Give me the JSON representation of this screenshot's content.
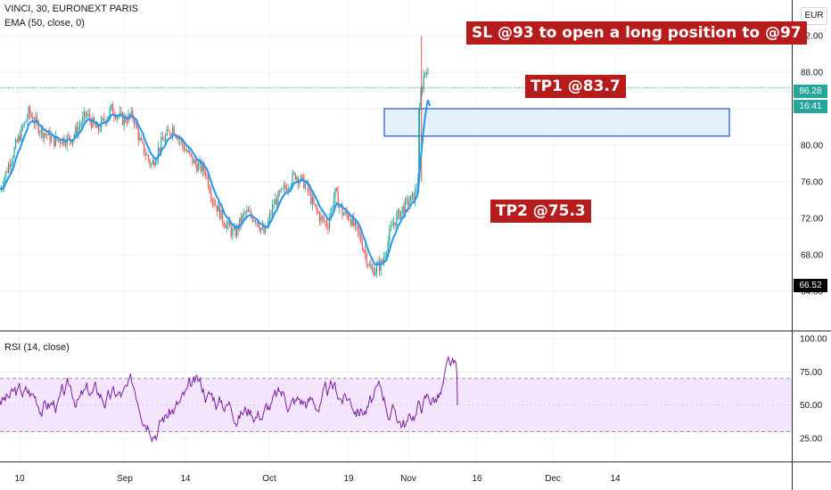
{
  "header": {
    "symbol_line": "VINCI, 30, EURONEXT PARIS",
    "ema_line": "EMA (50, close, 0)",
    "rsi_line": "RSI (14, close)",
    "currency_button": "EUR"
  },
  "annotations": {
    "sl": "SL @93 to open a long position to @97",
    "tp1": "TP1 @83.7",
    "tp2": "TP2 @75.3"
  },
  "price_labels": {
    "last": "86.28",
    "countdown": "16:41",
    "low": "66.52"
  },
  "colors": {
    "up": "#26a69a",
    "down": "#ef5350",
    "ema": "#2196f3",
    "rsi": "#7b1fa2",
    "rsi_band": "#f3e5fb",
    "zone_fill": "#e3f2fd",
    "zone_border": "#4a6fdc",
    "annotation_bg": "#b71c1c",
    "last_tag": "#26a69a",
    "low_tag": "#000000"
  },
  "chart_data": [
    {
      "type": "candlestick",
      "panel": "price",
      "y_ticks": [
        "64.00",
        "68.00",
        "72.00",
        "76.00",
        "80.00",
        "84.00",
        "88.00",
        "92.00"
      ],
      "ylim": [
        62.0,
        94.2
      ],
      "x_ticks": [
        "10",
        "Sep",
        "14",
        "Oct",
        "19",
        "Nov",
        "16",
        "Dec",
        "14"
      ],
      "close_path": [
        [
          0,
          75.2
        ],
        [
          0.03,
          78.5
        ],
        [
          0.08,
          83.6
        ],
        [
          0.11,
          81.8
        ],
        [
          0.15,
          80.5
        ],
        [
          0.2,
          80.8
        ],
        [
          0.24,
          83.4
        ],
        [
          0.27,
          81.6
        ],
        [
          0.31,
          84.0
        ],
        [
          0.34,
          82.8
        ],
        [
          0.37,
          83.2
        ],
        [
          0.39,
          80.2
        ],
        [
          0.42,
          77.8
        ],
        [
          0.45,
          80.4
        ],
        [
          0.48,
          82.0
        ],
        [
          0.51,
          79.8
        ],
        [
          0.54,
          78.0
        ],
        [
          0.57,
          77.2
        ],
        [
          0.59,
          74.2
        ],
        [
          0.62,
          71.8
        ],
        [
          0.65,
          70.2
        ],
        [
          0.68,
          72.6
        ],
        [
          0.71,
          72.0
        ],
        [
          0.735,
          70.2
        ],
        [
          0.76,
          73.6
        ],
        [
          0.79,
          75.2
        ],
        [
          0.82,
          76.8
        ],
        [
          0.85,
          75.6
        ],
        [
          0.87,
          73.4
        ],
        [
          0.89,
          72.0
        ],
        [
          0.91,
          71.3
        ],
        [
          0.93,
          74.8
        ],
        [
          0.95,
          72.6
        ],
        [
          0.97,
          72.2
        ],
        [
          1.0,
          69.8
        ],
        [
          1.03,
          66.2
        ],
        [
          1.06,
          67.0
        ],
        [
          1.09,
          71.4
        ],
        [
          1.12,
          73.2
        ],
        [
          1.15,
          74.4
        ],
        [
          1.16,
          76.0
        ],
        [
          1.165,
          84.5
        ],
        [
          1.175,
          87.4
        ],
        [
          1.185,
          88.8
        ],
        [
          1.19,
          86.28
        ]
      ],
      "ema": {
        "name": "EMA",
        "period": 50
      },
      "zone": {
        "top": 84.0,
        "bottom": 81.0
      },
      "last_price": 86.28,
      "low_marker": 66.52,
      "high_spike": 92.0
    },
    {
      "type": "line",
      "panel": "rsi",
      "y_ticks": [
        "25.00",
        "50.00",
        "75.00",
        "100.00"
      ],
      "ylim": [
        13,
        102
      ],
      "band": [
        30,
        70
      ],
      "midline": 50
    }
  ]
}
